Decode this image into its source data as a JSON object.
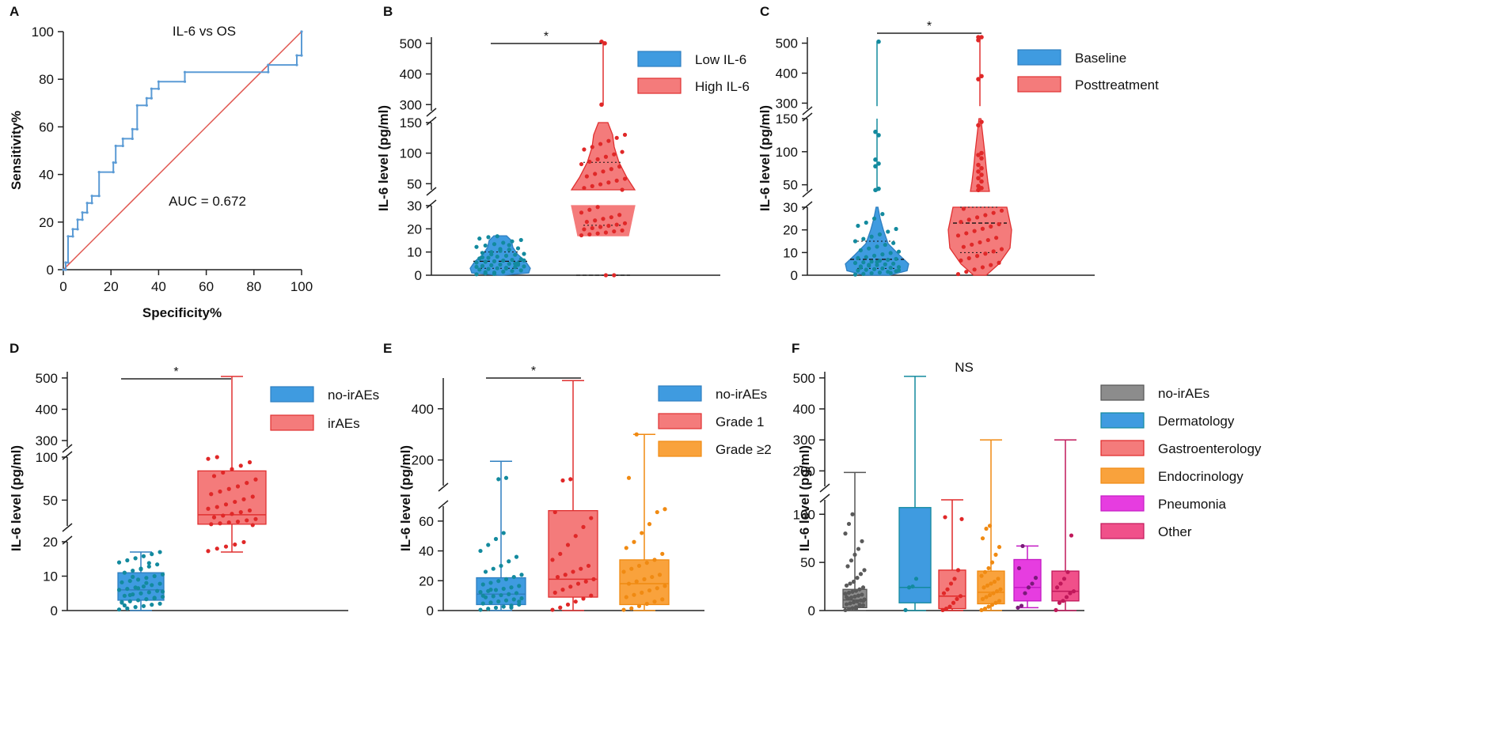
{
  "figure": {
    "panels": [
      "A",
      "B",
      "C",
      "D",
      "E",
      "F"
    ]
  },
  "chart_data": [
    {
      "panel": "A",
      "type": "line",
      "title": "IL-6 vs OS",
      "xlabel": "Specificity%",
      "ylabel": "Sensitivity%",
      "xlim": [
        0,
        100
      ],
      "ylim": [
        0,
        100
      ],
      "xticks": [
        "0",
        "20",
        "40",
        "60",
        "80",
        "100"
      ],
      "yticks": [
        "0",
        "20",
        "40",
        "60",
        "80",
        "100"
      ],
      "annotation": "AUC = 0.672",
      "colors": {
        "roc": "#5b9bd5",
        "reference": "#e0554e"
      },
      "series": [
        {
          "name": "ROC",
          "x": [
            0,
            1,
            1,
            2,
            2,
            4,
            4,
            6,
            6,
            8,
            8,
            10,
            10,
            12,
            12,
            15,
            15,
            21,
            21,
            22,
            22,
            25,
            25,
            29,
            29,
            31,
            31,
            35,
            35,
            37,
            37,
            40,
            40,
            51,
            51,
            86,
            86,
            98,
            98,
            100,
            100
          ],
          "y": [
            0,
            0,
            3,
            3,
            14,
            14,
            17,
            17,
            21,
            21,
            24,
            24,
            28,
            28,
            31,
            31,
            41,
            41,
            45,
            45,
            52,
            52,
            55,
            55,
            59,
            59,
            69,
            69,
            72,
            72,
            76,
            76,
            79,
            79,
            83,
            83,
            86,
            86,
            90,
            90,
            100
          ]
        },
        {
          "name": "Reference",
          "x": [
            0,
            100
          ],
          "y": [
            0,
            100
          ]
        }
      ]
    },
    {
      "panel": "B",
      "type": "violin",
      "ylabel": "IL-6 level (pg/ml)",
      "categories": [
        "Low IL-6",
        "High IL-6"
      ],
      "colors": {
        "Low IL-6": "#3f9be0",
        "High IL-6": "#f47b7b",
        "Low IL-6 dots": "#138a9e",
        "High IL-6 dots": "#e02828",
        "Low IL-6 edge": "#2f7fc0",
        "High IL-6 edge": "#e03030"
      },
      "yticks": [
        "0",
        "10",
        "20",
        "30",
        "50",
        "100",
        "150",
        "300",
        "400",
        "500"
      ],
      "significance": "*",
      "series": [
        {
          "name": "Low IL-6",
          "range": [
            0,
            17
          ],
          "median": 6,
          "q1": 3,
          "q3": 10,
          "points": [
            0.4,
            0.8,
            1.1,
            1.5,
            1.8,
            2.1,
            2.4,
            2.7,
            3.0,
            3.2,
            3.5,
            3.8,
            4.0,
            4.3,
            4.6,
            4.9,
            5.2,
            5.5,
            5.8,
            6.0,
            6.3,
            6.6,
            6.9,
            7.2,
            7.5,
            8.0,
            8.4,
            8.8,
            9.2,
            9.6,
            10.0,
            10.5,
            11.0,
            11.6,
            12.2,
            12.8,
            13.4,
            14.0,
            14.6,
            15.2,
            15.8,
            16.4,
            16.8,
            2.9,
            5.0,
            6.4,
            7.7,
            9.0,
            11.3,
            13.0,
            4.5,
            3.6,
            1.3,
            0.6
          ]
        },
        {
          "name": "High IL-6",
          "range": [
            17,
            150
          ],
          "upper_points": [
            300,
            500,
            505
          ],
          "median": 35,
          "q1": 21.5,
          "q3": 85,
          "points": [
            17.2,
            17.6,
            18.0,
            18.4,
            18.9,
            19.3,
            19.8,
            20.3,
            20.8,
            21.3,
            21.8,
            22.4,
            23.0,
            23.6,
            24.3,
            25.0,
            26.0,
            27.0,
            28.2,
            29.4,
            36,
            38,
            40,
            43,
            46,
            49,
            52,
            55,
            58,
            62,
            66,
            70,
            74,
            78,
            82,
            86,
            90,
            94,
            98,
            102,
            106,
            110,
            115,
            120,
            125,
            130
          ]
        }
      ]
    },
    {
      "panel": "C",
      "type": "violin",
      "ylabel": "IL-6 level (pg/ml)",
      "categories": [
        "Baseline",
        "Posttreatment"
      ],
      "colors": {
        "Baseline": "#3f9be0",
        "Posttreatment": "#f47b7b",
        "Baseline dots": "#138a9e",
        "Posttreatment dots": "#e02828",
        "Baseline edge": "#2f7fc0",
        "Posttreatment edge": "#e03030"
      },
      "yticks": [
        "0",
        "10",
        "20",
        "30",
        "50",
        "100",
        "150",
        "300",
        "400",
        "500"
      ],
      "significance": "*",
      "series": [
        {
          "name": "Baseline",
          "range": [
            0,
            30
          ],
          "upper_range": [
            40,
            150
          ],
          "max": 505,
          "median": 7,
          "q1": 3,
          "q3": 15,
          "points": [
            0.3,
            0.6,
            0.9,
            1.2,
            1.5,
            1.8,
            2.1,
            2.4,
            2.7,
            3.0,
            3.3,
            3.6,
            3.9,
            4.2,
            4.5,
            4.8,
            5.1,
            5.4,
            5.7,
            6.0,
            6.4,
            6.8,
            7.2,
            7.6,
            8.0,
            8.6,
            9.2,
            9.8,
            10.4,
            11.0,
            11.8,
            12.6,
            13.4,
            14.2,
            15.0,
            16.0,
            17.0,
            18.0,
            19.2,
            20.4,
            21.8,
            23.2,
            25.0,
            27.0,
            1.0,
            2.2,
            3.4,
            4.6,
            5.8
          ],
          "upper_points": [
            42,
            44,
            78,
            82,
            88,
            125,
            130,
            505
          ]
        },
        {
          "name": "Posttreatment",
          "range": [
            0,
            30
          ],
          "upper_range": [
            40,
            150
          ],
          "median": 23,
          "q1": 10,
          "q3": 30,
          "points": [
            0.5,
            1.5,
            2.5,
            3.5,
            4.5,
            5.5,
            6.5,
            7.5,
            8.5,
            9.5,
            10.5,
            11.5,
            12.5,
            13.5,
            14.5,
            15.5,
            16.5,
            17.5,
            18.5,
            19.5,
            20.5,
            21.5,
            22.5,
            23.5,
            24.5,
            25.5,
            26.5,
            27.5,
            28.5,
            29.3
          ],
          "upper_points": [
            42,
            45,
            48,
            55,
            60,
            65,
            70,
            75,
            80,
            90,
            95,
            98,
            140,
            145,
            380,
            390,
            510,
            530,
            540
          ]
        }
      ]
    },
    {
      "panel": "D",
      "type": "box",
      "ylabel": "IL-6 level (pg/ml)",
      "categories": [
        "no-irAEs",
        "irAEs"
      ],
      "colors": {
        "no-irAEs": "#3f9be0",
        "irAEs": "#f47b7b",
        "no-irAEs dots": "#138a9e",
        "irAEs dots": "#e02828",
        "no-irAEs edge": "#2f7fc0",
        "irAEs edge": "#e03030"
      },
      "yticks": [
        "0",
        "10",
        "20",
        "50",
        "100",
        "300",
        "400",
        "500"
      ],
      "significance": "*",
      "series": [
        {
          "name": "no-irAEs",
          "min": 0,
          "q1": 3,
          "median": 6,
          "q3": 11,
          "max": 17,
          "points": [
            0.3,
            0.6,
            1.0,
            1.3,
            1.7,
            2.0,
            2.3,
            2.7,
            3.0,
            3.3,
            3.7,
            4.0,
            4.3,
            4.7,
            5.0,
            5.3,
            5.7,
            6.0,
            6.3,
            6.7,
            7.0,
            7.4,
            7.8,
            8.2,
            8.6,
            9.0,
            9.5,
            10.0,
            10.5,
            11.0,
            11.6,
            12.2,
            12.8,
            13.4,
            14.0,
            14.6,
            15.2,
            15.8,
            16.4,
            17.0,
            2.5,
            4.5,
            6.5,
            8.0,
            3.5,
            5.5,
            1.5,
            9.8,
            12.0,
            13.8
          ]
        },
        {
          "name": "irAEs",
          "min": 17,
          "q1": 22,
          "median": 33,
          "q3": 84,
          "max": 505,
          "points": [
            17.3,
            18.0,
            18.6,
            19.2,
            19.9,
            21.0,
            22.0,
            23.0,
            24.0,
            25.0,
            26.5,
            28.0,
            30.0,
            32.0,
            34.0,
            36.0,
            38.0,
            40.0,
            42.0,
            45.0,
            48.0,
            51.0,
            54.0,
            57.0,
            60.0,
            63.0,
            66.0,
            70.0,
            74.0,
            78.0,
            82.0,
            86.0,
            90.0,
            94.0,
            98.0,
            100.0
          ]
        }
      ]
    },
    {
      "panel": "E",
      "type": "box",
      "ylabel": "IL-6 level (pg/ml)",
      "categories": [
        "no-irAEs",
        "Grade 1",
        "Grade ≥2"
      ],
      "colors": {
        "no-irAEs": "#3f9be0",
        "Grade 1": "#f47b7b",
        "Grade ≥2": "#f9a23c",
        "no-irAEs dots": "#138a9e",
        "Grade 1 dots": "#e02828",
        "Grade ≥2 dots": "#f08a12",
        "no-irAEs edge": "#2f7fc0",
        "Grade 1 edge": "#e03030",
        "Grade ≥2 edge": "#f08a12"
      },
      "yticks": [
        "0",
        "20",
        "40",
        "60",
        "200",
        "400"
      ],
      "significance": "*",
      "series": [
        {
          "name": "no-irAEs",
          "min": 0,
          "q1": 4,
          "median": 11,
          "q3": 22,
          "max": 195,
          "points": [
            0.5,
            1.2,
            1.9,
            2.6,
            3.3,
            4.0,
            4.7,
            5.4,
            6.1,
            6.8,
            7.5,
            8.2,
            8.9,
            9.6,
            10.3,
            11.0,
            11.7,
            12.4,
            13.1,
            13.8,
            14.6,
            15.5,
            16.5,
            17.5,
            18.6,
            19.8,
            21.0,
            22.5,
            24.0,
            26.0,
            28.0,
            30.0,
            33.0,
            36.0,
            40.0,
            44.0,
            48.0,
            52.0,
            2.0,
            6.0,
            10.0,
            14.0,
            125,
            130
          ]
        },
        {
          "name": "Grade 1",
          "min": 0,
          "q1": 9,
          "median": 21,
          "q3": 67,
          "max": 510,
          "points": [
            0.5,
            2.0,
            4.0,
            6.0,
            8.0,
            10.0,
            12.0,
            14.0,
            16.0,
            18.0,
            19.5,
            21.0,
            22.5,
            24.0,
            26.0,
            28.0,
            30.0,
            34.0,
            38.0,
            44.0,
            50.0,
            56.0,
            62.0,
            66.0,
            120,
            125
          ]
        },
        {
          "name": "Grade ≥2",
          "min": 0,
          "q1": 4,
          "median": 18,
          "q3": 34,
          "max": 300,
          "points": [
            0.5,
            1.5,
            3.0,
            4.5,
            6.0,
            7.5,
            9.0,
            10.5,
            12.0,
            13.5,
            15.0,
            16.5,
            18.0,
            19.5,
            21.0,
            22.5,
            24.0,
            26.0,
            28.0,
            30.0,
            32.0,
            34.0,
            38.0,
            42.0,
            46.0,
            52.0,
            58.0,
            66.0,
            68.0,
            130,
            300
          ]
        }
      ]
    },
    {
      "panel": "F",
      "type": "box",
      "title": "NS",
      "ylabel": "IL-6 level (pg/ml)",
      "categories": [
        "no-irAEs",
        "Dermatology",
        "Gastroenterology",
        "Endocrinology",
        "Pneumonia",
        "Other"
      ],
      "colors": {
        "no-irAEs": "#8c8c8c",
        "Dermatology": "#3f9be0",
        "Gastroenterology": "#f47b7b",
        "Endocrinology": "#f9a23c",
        "Pneumonia": "#e63de0",
        "Other": "#f0508a",
        "no-irAEs dots": "#5a5a5a",
        "Dermatology dots": "#138a9e",
        "Gastroenterology dots": "#e02828",
        "Endocrinology dots": "#f08a12",
        "Pneumonia dots": "#7a1a7a",
        "Other dots": "#c0185a",
        "no-irAEs edge": "#555555",
        "Dermatology edge": "#138a9e",
        "Gastroenterology edge": "#e02828",
        "Endocrinology edge": "#f08a12",
        "Pneumonia edge": "#c41ac4",
        "Other edge": "#c0185a"
      },
      "yticks": [
        "0",
        "50",
        "100",
        "200",
        "300",
        "400",
        "500"
      ],
      "series": [
        {
          "name": "no-irAEs",
          "min": 0,
          "q1": 3,
          "median": 11,
          "q3": 22,
          "max": 195,
          "points": [
            0.5,
            1.5,
            2.5,
            3.5,
            4.5,
            5.5,
            6.5,
            7.5,
            8.5,
            9.5,
            10.5,
            11.5,
            12.5,
            13.5,
            14.5,
            15.5,
            16.5,
            17.5,
            18.5,
            19.5,
            20.5,
            22.0,
            24.0,
            26.0,
            28.0,
            30.0,
            34.0,
            38.0,
            42.0,
            46.0,
            52.0,
            58.0,
            64.0,
            72.0,
            80.0,
            90.0,
            100.0,
            2.0,
            6.0,
            10.0,
            14.0
          ]
        },
        {
          "name": "Dermatology",
          "min": 0,
          "q1": 8,
          "median": 24,
          "q3": 107,
          "max": 505,
          "points": [
            0.5,
            24.0,
            25.0,
            33.0
          ]
        },
        {
          "name": "Gastroenterology",
          "min": 0,
          "q1": 2,
          "median": 15,
          "q3": 42,
          "max": 115,
          "points": [
            0.5,
            2.0,
            4.0,
            8.0,
            12.0,
            15.0,
            18.0,
            22.0,
            28.0,
            33.0,
            42.0,
            95.0,
            97.0
          ]
        },
        {
          "name": "Endocrinology",
          "min": 0,
          "q1": 7,
          "median": 19,
          "q3": 41,
          "max": 300,
          "points": [
            0.5,
            2.0,
            4.0,
            6.0,
            8.0,
            10.0,
            12.0,
            14.0,
            16.0,
            18.0,
            20.0,
            22.0,
            24.0,
            26.0,
            28.0,
            30.0,
            33.0,
            36.0,
            40.0,
            44.0,
            50.0,
            58.0,
            66.0,
            75.0,
            85.0,
            88.0
          ]
        },
        {
          "name": "Pneumonia",
          "min": 3,
          "q1": 10,
          "median": 24,
          "q3": 53,
          "max": 67,
          "points": [
            3.0,
            5.0,
            18.0,
            24.0,
            28.0,
            34.0,
            44.0,
            67.0
          ]
        },
        {
          "name": "Other",
          "min": 0,
          "q1": 10,
          "median": 20,
          "q3": 41,
          "max": 300,
          "points": [
            0.5,
            8.0,
            10.0,
            14.0,
            18.0,
            20.0,
            24.0,
            28.0,
            33.0,
            40.0,
            78.0
          ]
        }
      ]
    }
  ]
}
